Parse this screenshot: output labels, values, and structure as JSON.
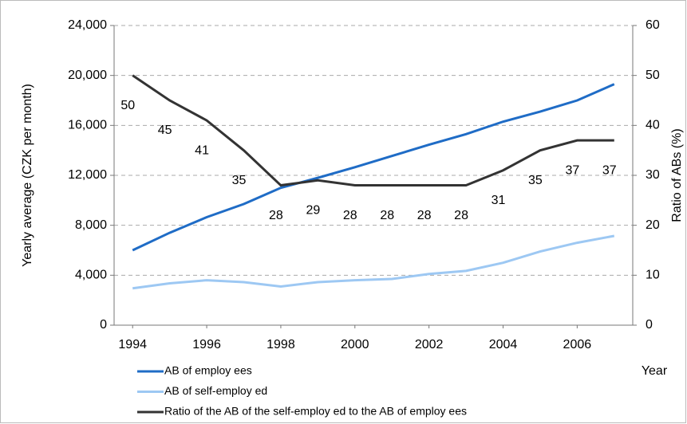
{
  "chart_data": {
    "type": "line",
    "x_label": "Year",
    "y_label": "Yearly average (CZK per month)",
    "y2_label": "Ratio of ABs (%)",
    "x": [
      1994,
      1995,
      1996,
      1997,
      1998,
      1999,
      2000,
      2001,
      2002,
      2003,
      2004,
      2005,
      2006,
      2007
    ],
    "xlim": [
      1993.5,
      2007.5
    ],
    "xticks": [
      1994,
      1996,
      1998,
      2000,
      2002,
      2004,
      2006
    ],
    "ylim": [
      0,
      24000
    ],
    "yticks": [
      0,
      {
        "value": 4000,
        "label": "4,000"
      },
      {
        "value": 8000,
        "label": "8,000"
      },
      {
        "value": 12000,
        "label": "12,000"
      },
      {
        "value": 16000,
        "label": "16,000"
      },
      {
        "value": 20000,
        "label": "20,000"
      },
      {
        "value": 24000,
        "label": "24,000"
      }
    ],
    "y2lim": [
      0,
      60
    ],
    "y2ticks": [
      0,
      10,
      20,
      30,
      40,
      50,
      60
    ],
    "grid": true,
    "legend": "bottom",
    "series": [
      {
        "name": "AB of employ ees",
        "color": "#1f6cc6",
        "values": [
          6000,
          7400,
          8650,
          9700,
          11000,
          11800,
          12650,
          13550,
          14450,
          15300,
          16300,
          17100,
          18000,
          19300
        ]
      },
      {
        "name": "AB of self-employ ed",
        "color": "#9dc8f3",
        "values": [
          2950,
          3350,
          3600,
          3450,
          3100,
          3450,
          3600,
          3700,
          4100,
          4350,
          5000,
          5900,
          6600,
          7150
        ]
      },
      {
        "name": "Ratio of the AB of the self-employ ed to the AB of employ ees",
        "color": "#333333",
        "axis": "y2",
        "data_labels": true,
        "values": [
          50,
          45,
          41,
          35,
          28,
          29,
          28,
          28,
          28,
          28,
          31,
          35,
          37,
          37
        ]
      }
    ]
  }
}
